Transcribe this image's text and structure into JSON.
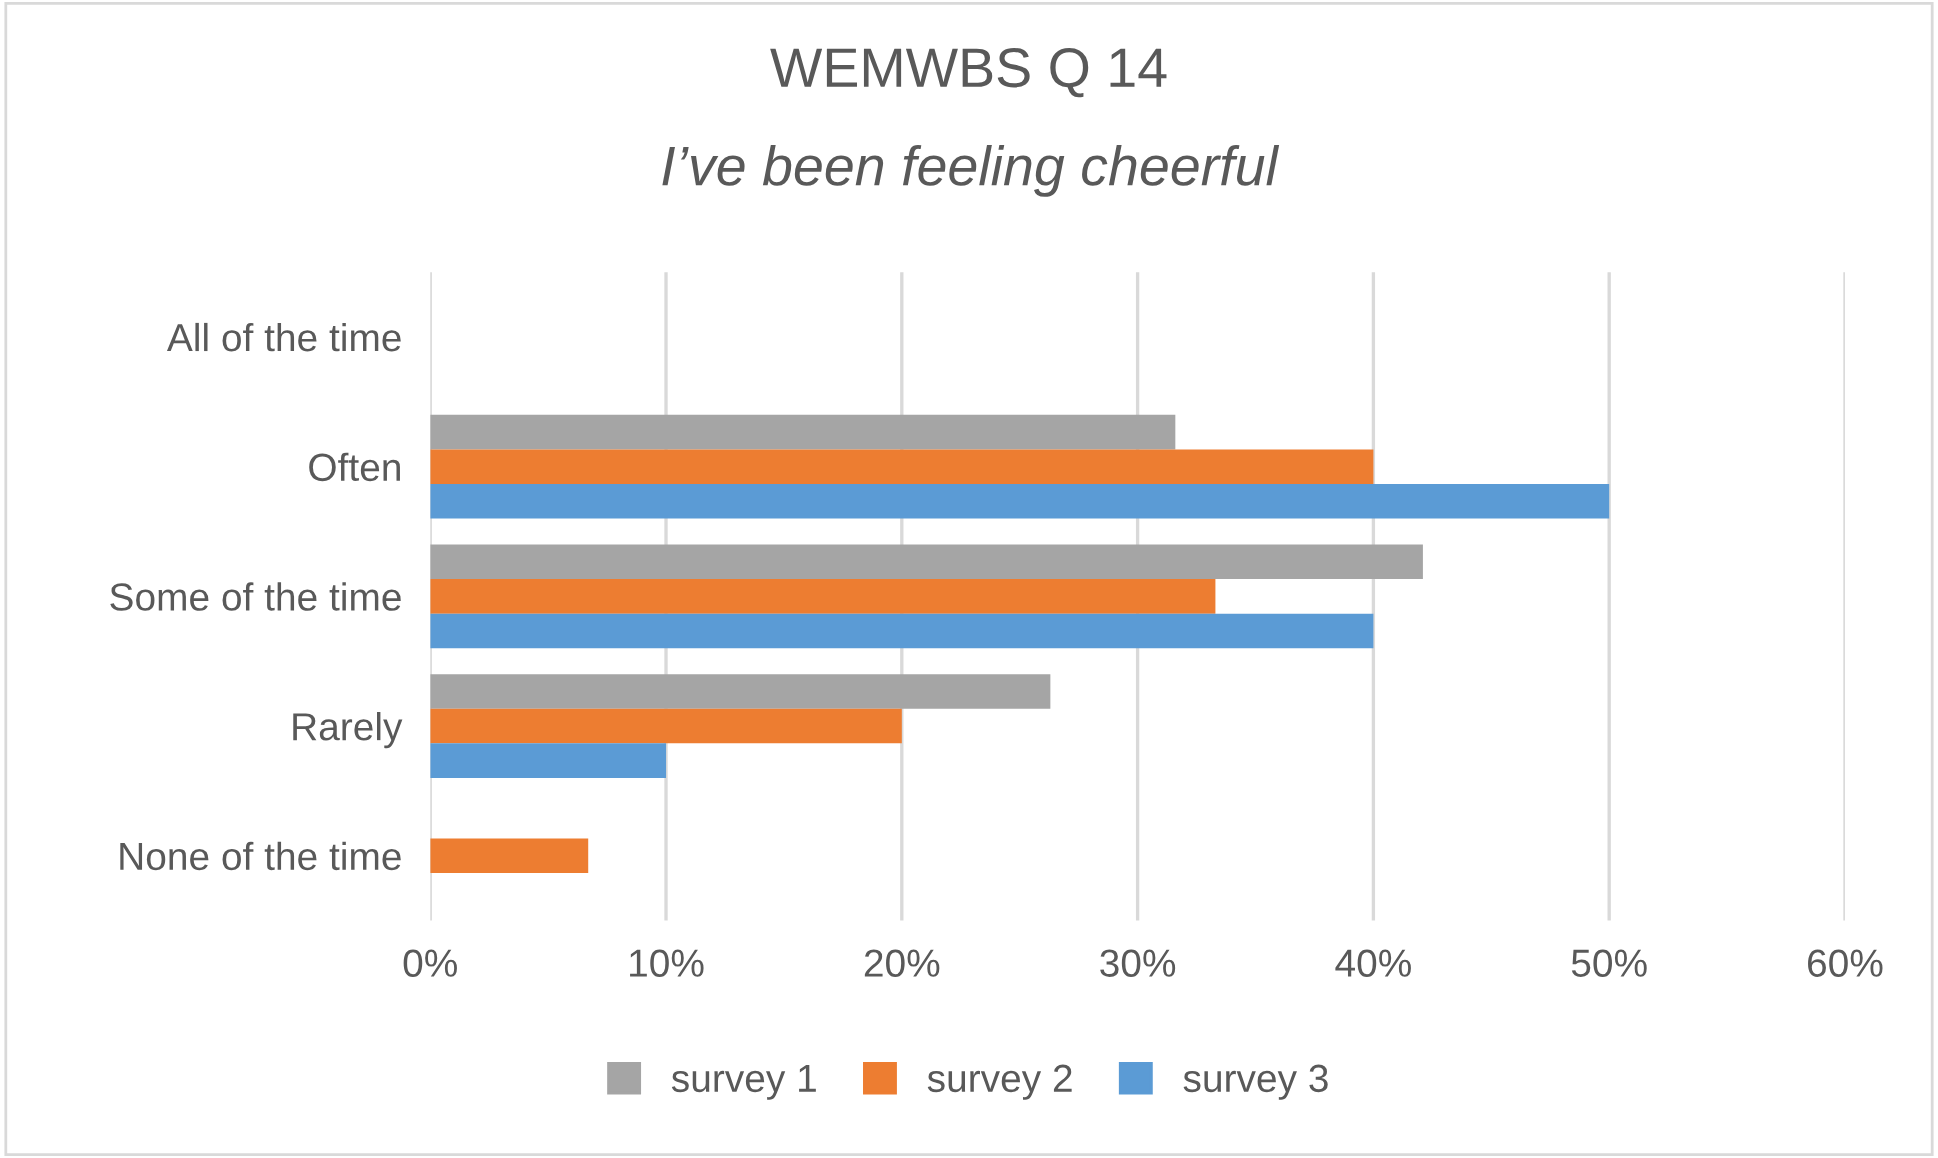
{
  "chart_data": {
    "type": "bar",
    "orientation": "horizontal",
    "title": "WEMWBS Q 14",
    "subtitle": "I’ve been feeling cheerful",
    "categories": [
      "All of the time",
      "Often",
      "Some of the time",
      "Rarely",
      "None of the time"
    ],
    "series": [
      {
        "name": "survey 1",
        "color": "#a5a5a5",
        "values": [
          0,
          31.6,
          42.1,
          26.3,
          0
        ]
      },
      {
        "name": "survey 2",
        "color": "#ed7d31",
        "values": [
          0,
          40,
          33.3,
          20,
          6.7
        ]
      },
      {
        "name": "survey 3",
        "color": "#5b9bd5",
        "values": [
          0,
          50,
          40,
          10,
          0
        ]
      }
    ],
    "xlim": [
      0,
      60
    ],
    "xticks": [
      {
        "value": 0,
        "label": "0%"
      },
      {
        "value": 10,
        "label": "10%"
      },
      {
        "value": 20,
        "label": "20%"
      },
      {
        "value": 30,
        "label": "30%"
      },
      {
        "value": 40,
        "label": "40%"
      },
      {
        "value": 50,
        "label": "50%"
      },
      {
        "value": 60,
        "label": "60%"
      }
    ],
    "grid": "x",
    "legend": "bottom"
  }
}
